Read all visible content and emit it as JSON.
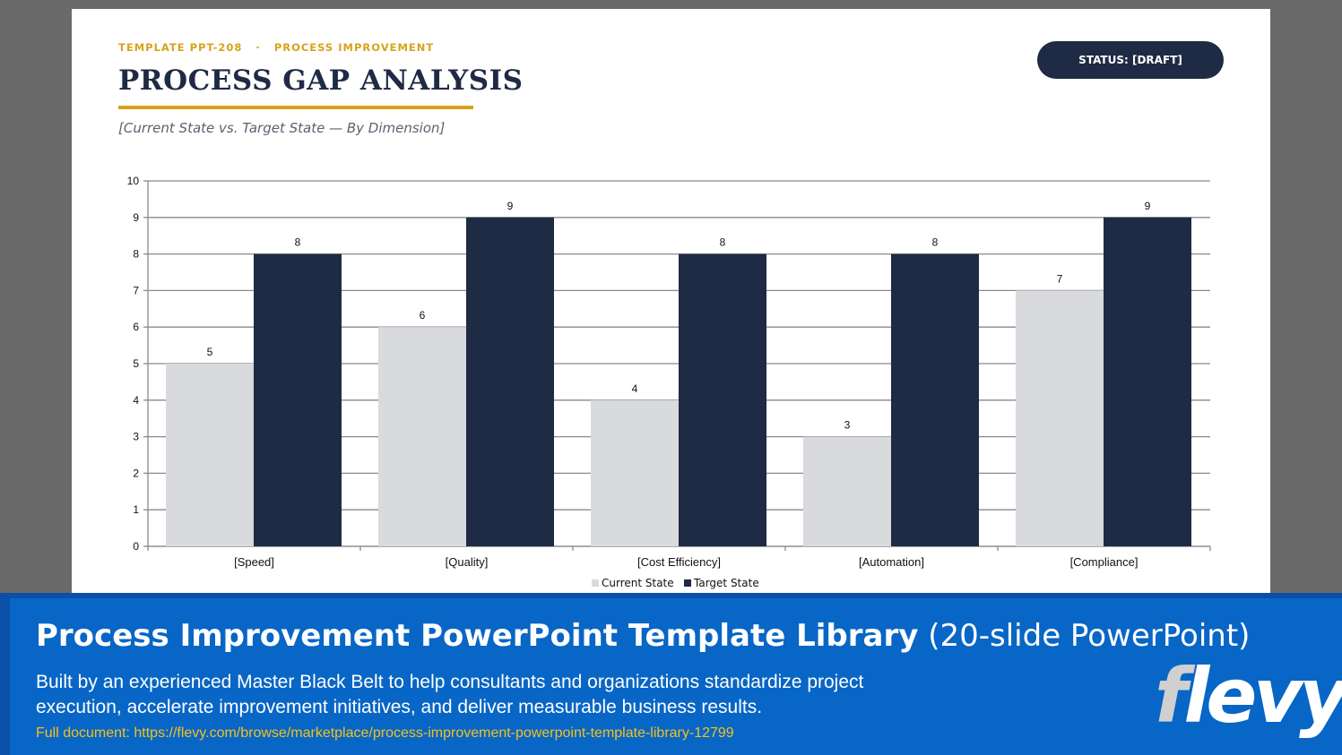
{
  "slide": {
    "eyebrow_template": "TEMPLATE PPT-208",
    "eyebrow_sep": "·",
    "eyebrow_category": "PROCESS IMPROVEMENT",
    "title": "PROCESS GAP ANALYSIS",
    "subtitle": "[Current State vs. Target State — By Dimension]",
    "status": "STATUS: [DRAFT]",
    "colors": {
      "accent": "#d9a21b",
      "navy": "#1f2a44",
      "current": "#d9dadd",
      "target": "#1f2a44"
    }
  },
  "chart_data": {
    "type": "bar",
    "categories": [
      "[Speed]",
      "[Quality]",
      "[Cost Efficiency]",
      "[Automation]",
      "[Compliance]"
    ],
    "series": [
      {
        "name": "Current State",
        "values": [
          5,
          6,
          4,
          3,
          7
        ],
        "color": "#d9dadd"
      },
      {
        "name": "Target State",
        "values": [
          8,
          9,
          8,
          8,
          9
        ],
        "color": "#1f2a44"
      }
    ],
    "ylim": [
      0,
      10
    ],
    "yticks": [
      0,
      1,
      2,
      3,
      4,
      5,
      6,
      7,
      8,
      9,
      10
    ],
    "grid": true,
    "legend": "bottom",
    "data_labels": true
  },
  "banner": {
    "title_bold": "Process Improvement PowerPoint Template Library",
    "title_rest": "(20-slide PowerPoint)",
    "description": "Built by an experienced Master Black Belt to help consultants and organizations standardize project execution, accelerate improvement initiatives, and deliver measurable business results.",
    "link": "Full document: https://flevy.com/browse/marketplace/process-improvement-powerpoint-template-library-12799",
    "logo_first": "f",
    "logo_rest": "levy"
  }
}
